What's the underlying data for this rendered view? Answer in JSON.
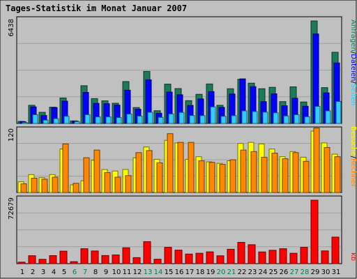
{
  "chart_data": {
    "type": "bar",
    "title": "Tages-Statistik im Monat Januar 2007",
    "categories": [
      "1",
      "2",
      "3",
      "4",
      "5",
      "6",
      "7",
      "8",
      "9",
      "10",
      "11",
      "12",
      "13",
      "14",
      "15",
      "16",
      "17",
      "18",
      "19",
      "20",
      "21",
      "22",
      "23",
      "24",
      "25",
      "26",
      "27",
      "28",
      "29",
      "30",
      "31"
    ],
    "weekend_days": [
      "6",
      "7",
      "13",
      "14",
      "20",
      "21",
      "27",
      "28"
    ],
    "colors": {
      "background": "#c0c0c0",
      "anfragen": "#1a7a5a",
      "dateien": "#0000ff",
      "seiten": "#33ccff",
      "besuche": "#ffff00",
      "rechner": "#ff8800",
      "kb": "#ff0000",
      "weekend_label": "#00805a",
      "title": "#0000ff"
    },
    "panels": [
      {
        "name": "hits",
        "ymax": 6438,
        "ytick_label": "6438",
        "series": [
          {
            "key": "anfragen",
            "values": [
              130,
              1140,
              700,
              1020,
              1600,
              160,
              2370,
              1560,
              1420,
              1270,
              2630,
              1000,
              3270,
              800,
              2470,
              2190,
              1430,
              1830,
              2480,
              1140,
              2180,
              2770,
              2530,
              2180,
              2270,
              1370,
              2300,
              1350,
              6438,
              2250,
              4470
            ]
          },
          {
            "key": "dateien",
            "values": [
              110,
              1040,
              500,
              1000,
              1400,
              150,
              1950,
              1260,
              1240,
              1150,
              2090,
              890,
              2740,
              640,
              1970,
              1800,
              1130,
              1540,
              2000,
              1010,
              1850,
              2800,
              2310,
              1370,
              1860,
              1110,
              1580,
              1080,
              5620,
              1920,
              3800
            ]
          },
          {
            "key": "seiten",
            "values": [
              60,
              550,
              210,
              300,
              450,
              120,
              550,
              410,
              410,
              370,
              590,
              460,
              700,
              380,
              600,
              690,
              500,
              490,
              1040,
              450,
              490,
              790,
              750,
              710,
              670,
              470,
              550,
              420,
              1070,
              790,
              1380
            ]
          }
        ]
      },
      {
        "name": "visits",
        "ymax": 120,
        "ytick_label": "120",
        "series": [
          {
            "key": "besuche",
            "values": [
              21,
              35,
              29,
              35,
              85,
              15,
              23,
              63,
              45,
              42,
              45,
              68,
              89,
              65,
              102,
              97,
              65,
              70,
              60,
              57,
              62,
              96,
              98,
              95,
              85,
              70,
              80,
              69,
              120,
              97,
              75
            ]
          },
          {
            "key": "rechner",
            "values": [
              17,
              28,
              26,
              30,
              95,
              18,
              68,
              83,
              39,
              30,
              33,
              78,
              82,
              58,
              115,
              98,
              98,
              62,
              59,
              55,
              64,
              83,
              80,
              69,
              77,
              66,
              78,
              61,
              126,
              88,
              70
            ]
          }
        ]
      },
      {
        "name": "kb",
        "ymax": 72679,
        "ytick_label": "72679",
        "series": [
          {
            "key": "kb",
            "values": [
              1700,
              9100,
              5000,
              9200,
              14300,
              2300,
              17100,
              14500,
              9300,
              10000,
              18200,
              6900,
              25200,
              5100,
              18700,
              15500,
              11000,
              11900,
              13500,
              9000,
              16500,
              24400,
              21700,
              13400,
              15300,
              17100,
              11900,
              18700,
              72679,
              14600,
              30400
            ]
          }
        ]
      }
    ],
    "right_labels": {
      "top": [
        "Anfragen",
        "/",
        "Dateien",
        "/",
        "Seiten"
      ],
      "middle": [
        "Besuche",
        "/",
        "Rechner"
      ],
      "bottom": [
        "kb"
      ]
    },
    "legend_placement": "right, vertical"
  }
}
